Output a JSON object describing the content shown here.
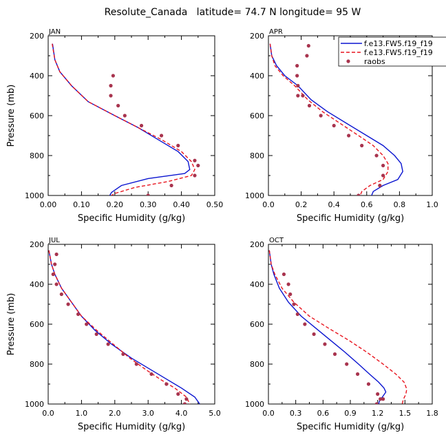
{
  "figure_title": "Resolute_Canada   latitude= 74.7 N longitude= 95 W",
  "legend": {
    "entries": [
      {
        "label": "f.e13.FW5.f19_f19",
        "style": "solid",
        "color": "#0a14d0"
      },
      {
        "label": "f.e13.FW5.f19_f19",
        "style": "dashed",
        "color": "#e8141e"
      },
      {
        "label": "raobs",
        "style": "dots",
        "color": "#a8344e"
      }
    ]
  },
  "chart_data": [
    {
      "type": "line",
      "panel": "JAN",
      "title": "JAN",
      "xlabel": "Specific Humidity (g/kg)",
      "ylabel": "Pressure (mb)",
      "xlim": [
        0,
        0.5
      ],
      "ylim": [
        1000,
        200
      ],
      "xticks": [
        "0.00",
        "0.10",
        "0.20",
        "0.30",
        "0.40",
        "0.50"
      ],
      "yticks": [
        "200",
        "400",
        "600",
        "800",
        "1000"
      ],
      "series": [
        {
          "name": "f.e13.FW5.f19_f19",
          "style": "solid",
          "x": [
            0.013,
            0.02,
            0.035,
            0.07,
            0.12,
            0.2,
            0.27,
            0.33,
            0.39,
            0.42,
            0.425,
            0.41,
            0.3,
            0.22,
            0.19,
            0.185
          ],
          "y": [
            240,
            320,
            380,
            450,
            530,
            600,
            660,
            720,
            780,
            830,
            870,
            890,
            915,
            950,
            985,
            1000
          ]
        },
        {
          "name": "f.e13.FW5.f19_f19",
          "style": "dashed",
          "x": [
            0.012,
            0.02,
            0.035,
            0.07,
            0.12,
            0.2,
            0.27,
            0.34,
            0.4,
            0.43,
            0.44,
            0.43,
            0.36,
            0.26,
            0.2,
            0.19
          ],
          "y": [
            240,
            320,
            380,
            450,
            530,
            600,
            660,
            720,
            780,
            830,
            870,
            900,
            930,
            960,
            990,
            1000
          ]
        },
        {
          "name": "raobs",
          "style": "dots",
          "x": [
            0.195,
            0.188,
            0.188,
            0.21,
            0.23,
            0.28,
            0.34,
            0.39,
            0.44,
            0.45,
            0.44,
            0.37,
            0.3
          ],
          "y": [
            400,
            450,
            500,
            550,
            600,
            650,
            700,
            750,
            825,
            850,
            900,
            950,
            1000
          ]
        }
      ]
    },
    {
      "type": "line",
      "panel": "APR",
      "title": "APR",
      "xlabel": "Specific Humidity (g/kg)",
      "ylabel": "",
      "xlim": [
        0,
        1.0
      ],
      "ylim": [
        1000,
        200
      ],
      "xticks": [
        "0.0",
        "0.2",
        "0.4",
        "0.6",
        "0.8",
        "1.0"
      ],
      "yticks": [
        "200",
        "400",
        "600",
        "800",
        "1000"
      ],
      "series": [
        {
          "name": "f.e13.FW5.f19_f19",
          "style": "solid",
          "x": [
            0.01,
            0.02,
            0.05,
            0.1,
            0.18,
            0.26,
            0.36,
            0.48,
            0.6,
            0.7,
            0.77,
            0.81,
            0.82,
            0.79,
            0.7,
            0.64,
            0.63
          ],
          "y": [
            240,
            300,
            350,
            400,
            450,
            520,
            580,
            640,
            700,
            750,
            800,
            840,
            880,
            920,
            950,
            980,
            1000
          ]
        },
        {
          "name": "f.e13.FW5.f19_f19",
          "style": "dashed",
          "x": [
            0.01,
            0.02,
            0.04,
            0.09,
            0.16,
            0.24,
            0.33,
            0.44,
            0.55,
            0.64,
            0.7,
            0.73,
            0.73,
            0.7,
            0.62,
            0.57,
            0.56
          ],
          "y": [
            240,
            300,
            350,
            400,
            450,
            520,
            580,
            640,
            700,
            750,
            800,
            840,
            880,
            920,
            950,
            980,
            1000
          ]
        },
        {
          "name": "raobs",
          "style": "dots",
          "x": [
            0.245,
            0.235,
            0.175,
            0.175,
            0.18,
            0.18,
            0.21,
            0.25,
            0.32,
            0.4,
            0.49,
            0.57,
            0.66,
            0.7,
            0.7,
            0.68,
            0.55
          ],
          "y": [
            250,
            300,
            350,
            400,
            450,
            500,
            500,
            550,
            600,
            650,
            700,
            750,
            800,
            850,
            900,
            950,
            1000
          ]
        }
      ]
    },
    {
      "type": "line",
      "panel": "JUL",
      "title": "JUL",
      "xlabel": "Specific Humidity (g/kg)",
      "ylabel": "Pressure (mb)",
      "xlim": [
        0,
        5.0
      ],
      "ylim": [
        1000,
        200
      ],
      "xticks": [
        "0.0",
        "1.0",
        "2.0",
        "3.0",
        "4.0",
        "5.0"
      ],
      "yticks": [
        "200",
        "400",
        "600",
        "800",
        "1000"
      ],
      "series": [
        {
          "name": "f.e13.FW5.f19_f19",
          "style": "solid",
          "x": [
            0.02,
            0.1,
            0.2,
            0.4,
            0.7,
            1.0,
            1.4,
            1.9,
            2.5,
            3.1,
            3.6,
            4.0,
            4.4,
            4.55
          ],
          "y": [
            230,
            300,
            350,
            420,
            490,
            560,
            630,
            700,
            770,
            830,
            880,
            920,
            965,
            1000
          ]
        },
        {
          "name": "f.e13.FW5.f19_f19",
          "style": "dashed",
          "x": [
            0.02,
            0.1,
            0.2,
            0.4,
            0.7,
            1.0,
            1.45,
            1.95,
            2.45,
            2.95,
            3.4,
            3.8,
            4.15,
            4.25
          ],
          "y": [
            230,
            300,
            350,
            420,
            490,
            560,
            630,
            700,
            770,
            830,
            880,
            920,
            965,
            1000
          ]
        },
        {
          "name": "raobs",
          "style": "dots",
          "x": [
            0.25,
            0.2,
            0.15,
            0.25,
            0.4,
            0.6,
            0.9,
            1.15,
            1.45,
            1.8,
            2.25,
            2.65,
            3.1,
            3.55,
            3.9,
            4.15,
            4.1
          ],
          "y": [
            250,
            300,
            350,
            400,
            450,
            500,
            550,
            600,
            650,
            700,
            750,
            800,
            850,
            900,
            950,
            975,
            1000
          ]
        }
      ]
    },
    {
      "type": "line",
      "panel": "OCT",
      "title": "OCT",
      "xlabel": "Specific Humidity (g/kg)",
      "ylabel": "",
      "xlim": [
        0,
        1.8
      ],
      "ylim": [
        1000,
        200
      ],
      "xticks": [
        "0.0",
        "0.3",
        "0.6",
        "0.9",
        "1.2",
        "1.5",
        "1.8"
      ],
      "yticks": [
        "200",
        "400",
        "600",
        "800",
        "1000"
      ],
      "series": [
        {
          "name": "f.e13.FW5.f19_f19",
          "style": "solid",
          "x": [
            0.01,
            0.03,
            0.06,
            0.12,
            0.22,
            0.36,
            0.52,
            0.68,
            0.84,
            0.99,
            1.11,
            1.21,
            1.27,
            1.29,
            1.26,
            1.22,
            1.21
          ],
          "y": [
            230,
            300,
            350,
            420,
            490,
            560,
            620,
            680,
            740,
            800,
            850,
            890,
            920,
            940,
            960,
            985,
            1000
          ]
        },
        {
          "name": "f.e13.FW5.f19_f19",
          "style": "dashed",
          "x": [
            0.01,
            0.03,
            0.07,
            0.15,
            0.28,
            0.45,
            0.66,
            0.88,
            1.08,
            1.26,
            1.4,
            1.49,
            1.52,
            1.51,
            1.48,
            1.47
          ],
          "y": [
            230,
            300,
            350,
            420,
            490,
            560,
            620,
            680,
            740,
            800,
            850,
            890,
            925,
            950,
            980,
            1000
          ]
        },
        {
          "name": "raobs",
          "style": "dots",
          "x": [
            0.17,
            0.22,
            0.24,
            0.28,
            0.32,
            0.4,
            0.5,
            0.62,
            0.73,
            0.86,
            0.98,
            1.1,
            1.2,
            1.26,
            1.23,
            1.19
          ],
          "y": [
            350,
            400,
            450,
            500,
            550,
            600,
            650,
            700,
            750,
            800,
            850,
            900,
            950,
            975,
            975,
            1000
          ]
        }
      ]
    }
  ]
}
